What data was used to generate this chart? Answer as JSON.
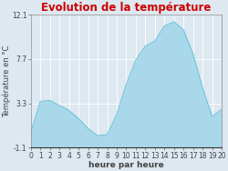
{
  "title": "Evolution de la température",
  "xlabel": "heure par heure",
  "ylabel": "Température en °C",
  "background_color": "#dde8f0",
  "plot_bg_color": "#dde8f0",
  "line_color": "#6ac0d8",
  "fill_color": "#a8d8ea",
  "fill_alpha": 1.0,
  "ylim": [
    -1.1,
    12.1
  ],
  "xlim": [
    0,
    20
  ],
  "yticks": [
    -1.1,
    3.3,
    7.7,
    12.1
  ],
  "hours": [
    0,
    1,
    2,
    3,
    4,
    5,
    6,
    7,
    8,
    9,
    10,
    11,
    12,
    13,
    14,
    15,
    16,
    17,
    18,
    19,
    20
  ],
  "temps": [
    0.4,
    3.5,
    3.6,
    3.1,
    2.6,
    1.8,
    0.8,
    0.1,
    0.2,
    2.2,
    5.2,
    7.6,
    9.0,
    9.5,
    11.0,
    11.4,
    10.6,
    8.2,
    4.8,
    2.0,
    2.7
  ],
  "title_color": "#cc0000",
  "title_fontsize": 8.5,
  "axis_label_fontsize": 6.5,
  "tick_fontsize": 5.5,
  "grid_color": "#ffffff",
  "border_color": "#888888"
}
